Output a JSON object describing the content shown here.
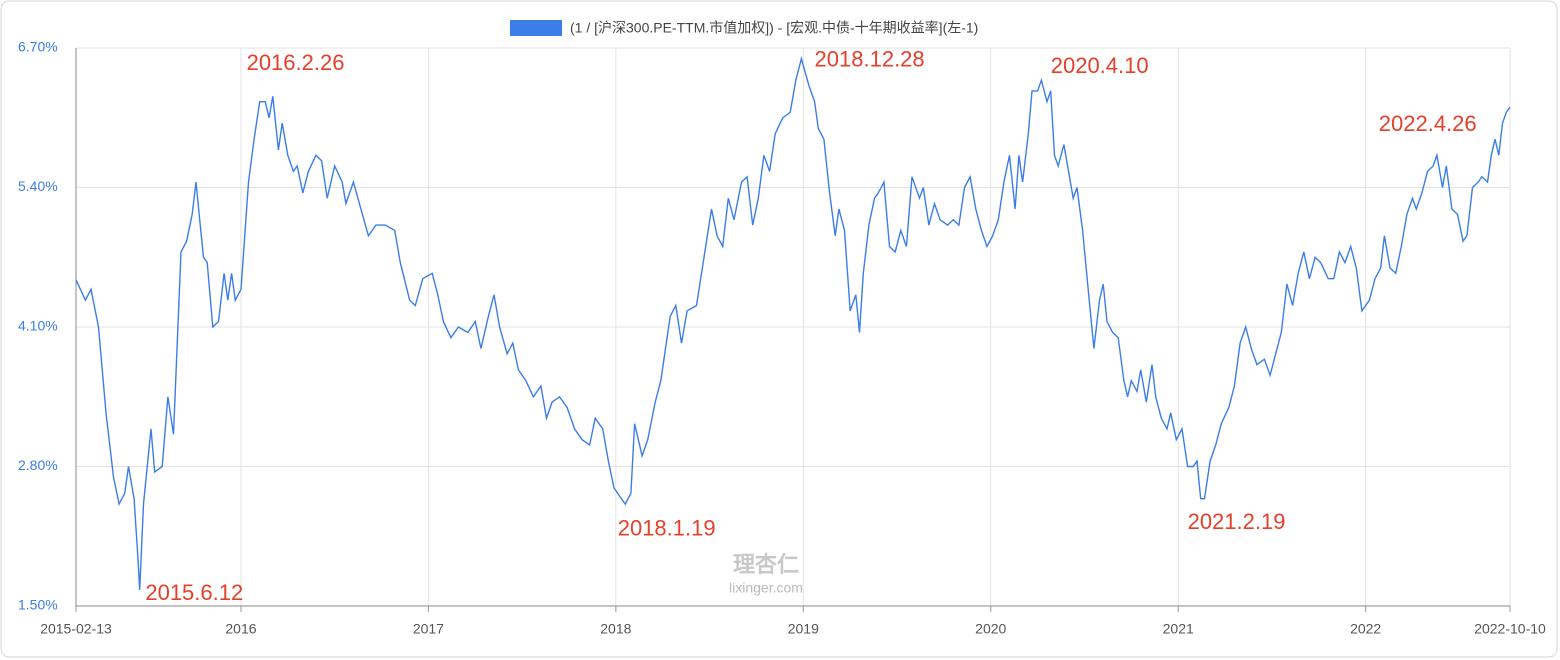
{
  "chart_data": {
    "type": "line",
    "legend_label": "(1 / [沪深300.PE-TTM.市值加权]) - [宏观.中债-十年期收益率](左-1)",
    "x": [
      2015.12,
      2015.17,
      2015.2,
      2015.24,
      2015.28,
      2015.32,
      2015.35,
      2015.38,
      2015.4,
      2015.43,
      2015.45,
      2015.46,
      2015.48,
      2015.52,
      2015.54,
      2015.58,
      2015.61,
      2015.64,
      2015.68,
      2015.71,
      2015.74,
      2015.76,
      2015.78,
      2015.8,
      2015.82,
      2015.85,
      2015.88,
      2015.91,
      2015.93,
      2015.95,
      2015.97,
      2016.0,
      2016.04,
      2016.07,
      2016.1,
      2016.13,
      2016.15,
      2016.17,
      2016.2,
      2016.22,
      2016.25,
      2016.28,
      2016.3,
      2016.33,
      2016.36,
      2016.4,
      2016.43,
      2016.46,
      2016.5,
      2016.54,
      2016.56,
      2016.6,
      2016.64,
      2016.68,
      2016.72,
      2016.77,
      2016.82,
      2016.85,
      2016.9,
      2016.93,
      2016.97,
      2017.02,
      2017.05,
      2017.08,
      2017.12,
      2017.16,
      2017.21,
      2017.25,
      2017.28,
      2017.32,
      2017.35,
      2017.38,
      2017.42,
      2017.45,
      2017.48,
      2017.52,
      2017.56,
      2017.6,
      2017.63,
      2017.66,
      2017.7,
      2017.74,
      2017.78,
      2017.82,
      2017.86,
      2017.89,
      2017.93,
      2017.96,
      2017.99,
      2018.05,
      2018.08,
      2018.1,
      2018.14,
      2018.17,
      2018.21,
      2018.24,
      2018.29,
      2018.32,
      2018.35,
      2018.38,
      2018.43,
      2018.47,
      2018.51,
      2018.54,
      2018.57,
      2018.6,
      2018.63,
      2018.67,
      2018.7,
      2018.73,
      2018.76,
      2018.79,
      2018.82,
      2018.85,
      2018.89,
      2018.93,
      2018.96,
      2018.99,
      2019.03,
      2019.06,
      2019.08,
      2019.11,
      2019.14,
      2019.17,
      2019.19,
      2019.22,
      2019.25,
      2019.28,
      2019.3,
      2019.32,
      2019.35,
      2019.38,
      2019.4,
      2019.43,
      2019.46,
      2019.49,
      2019.52,
      2019.55,
      2019.58,
      2019.62,
      2019.64,
      2019.67,
      2019.7,
      2019.73,
      2019.77,
      2019.8,
      2019.83,
      2019.86,
      2019.89,
      2019.92,
      2019.95,
      2019.98,
      2020.01,
      2020.04,
      2020.07,
      2020.1,
      2020.13,
      2020.15,
      2020.17,
      2020.2,
      2020.22,
      2020.25,
      2020.27,
      2020.3,
      2020.32,
      2020.34,
      2020.36,
      2020.39,
      2020.41,
      2020.44,
      2020.46,
      2020.49,
      2020.52,
      2020.55,
      2020.58,
      2020.6,
      2020.62,
      2020.65,
      2020.68,
      2020.71,
      2020.73,
      2020.75,
      2020.78,
      2020.8,
      2020.83,
      2020.86,
      2020.88,
      2020.91,
      2020.94,
      2020.96,
      2020.99,
      2021.02,
      2021.05,
      2021.08,
      2021.1,
      2021.12,
      2021.14,
      2021.17,
      2021.2,
      2021.23,
      2021.27,
      2021.3,
      2021.33,
      2021.36,
      2021.39,
      2021.42,
      2021.46,
      2021.49,
      2021.52,
      2021.55,
      2021.58,
      2021.61,
      2021.64,
      2021.67,
      2021.7,
      2021.73,
      2021.76,
      2021.8,
      2021.83,
      2021.86,
      2021.89,
      2021.92,
      2021.95,
      2021.98,
      2022.02,
      2022.05,
      2022.08,
      2022.1,
      2022.13,
      2022.16,
      2022.19,
      2022.22,
      2022.25,
      2022.27,
      2022.3,
      2022.33,
      2022.36,
      2022.38,
      2022.41,
      2022.43,
      2022.46,
      2022.49,
      2022.52,
      2022.54,
      2022.57,
      2022.6,
      2022.62,
      2022.65,
      2022.67,
      2022.69,
      2022.71,
      2022.73,
      2022.75,
      2022.77
    ],
    "series": [
      {
        "name": "(1 / [沪深300.PE-TTM.市值加权]) - [宏观.中债-十年期收益率](左-1)",
        "color": "#3b7de9",
        "values": [
          4.54,
          4.35,
          4.45,
          4.1,
          3.3,
          2.7,
          2.45,
          2.55,
          2.8,
          2.5,
          1.95,
          1.65,
          2.45,
          3.15,
          2.75,
          2.8,
          3.45,
          3.1,
          4.8,
          4.9,
          5.15,
          5.45,
          5.1,
          4.75,
          4.7,
          4.1,
          4.15,
          4.6,
          4.35,
          4.6,
          4.35,
          4.45,
          5.45,
          5.85,
          6.2,
          6.2,
          6.05,
          6.25,
          5.75,
          6.0,
          5.7,
          5.55,
          5.6,
          5.35,
          5.55,
          5.7,
          5.65,
          5.3,
          5.6,
          5.45,
          5.25,
          5.45,
          5.2,
          4.95,
          5.05,
          5.05,
          5.0,
          4.7,
          4.35,
          4.3,
          4.55,
          4.6,
          4.4,
          4.15,
          4.0,
          4.1,
          4.05,
          4.15,
          3.9,
          4.2,
          4.4,
          4.1,
          3.85,
          3.95,
          3.7,
          3.6,
          3.45,
          3.55,
          3.25,
          3.4,
          3.45,
          3.35,
          3.15,
          3.05,
          3.0,
          3.25,
          3.15,
          2.85,
          2.6,
          2.45,
          2.55,
          3.2,
          2.9,
          3.05,
          3.4,
          3.6,
          4.2,
          4.3,
          3.95,
          4.25,
          4.3,
          4.75,
          5.2,
          4.95,
          4.85,
          5.3,
          5.1,
          5.45,
          5.5,
          5.05,
          5.3,
          5.7,
          5.55,
          5.9,
          6.05,
          6.1,
          6.4,
          6.6,
          6.35,
          6.2,
          5.95,
          5.85,
          5.35,
          4.95,
          5.2,
          5.0,
          4.25,
          4.4,
          4.05,
          4.6,
          5.05,
          5.3,
          5.35,
          5.45,
          4.85,
          4.8,
          5.0,
          4.85,
          5.5,
          5.3,
          5.4,
          5.05,
          5.25,
          5.1,
          5.05,
          5.1,
          5.05,
          5.4,
          5.5,
          5.2,
          5.0,
          4.85,
          4.95,
          5.1,
          5.45,
          5.7,
          5.2,
          5.7,
          5.45,
          5.9,
          6.3,
          6.3,
          6.4,
          6.2,
          6.3,
          5.7,
          5.6,
          5.8,
          5.6,
          5.3,
          5.4,
          5.0,
          4.45,
          3.9,
          4.35,
          4.5,
          4.15,
          4.05,
          4.0,
          3.6,
          3.45,
          3.6,
          3.5,
          3.7,
          3.4,
          3.75,
          3.45,
          3.25,
          3.15,
          3.3,
          3.05,
          3.15,
          2.8,
          2.8,
          2.85,
          2.5,
          2.5,
          2.85,
          3.0,
          3.2,
          3.35,
          3.55,
          3.95,
          4.1,
          3.9,
          3.75,
          3.8,
          3.65,
          3.85,
          4.05,
          4.5,
          4.3,
          4.6,
          4.8,
          4.55,
          4.75,
          4.7,
          4.55,
          4.55,
          4.8,
          4.7,
          4.85,
          4.65,
          4.25,
          4.35,
          4.55,
          4.65,
          4.95,
          4.65,
          4.6,
          4.85,
          5.15,
          5.3,
          5.2,
          5.35,
          5.55,
          5.6,
          5.7,
          5.4,
          5.6,
          5.2,
          5.15,
          4.9,
          4.95,
          5.4,
          5.45,
          5.5,
          5.45,
          5.7,
          5.85,
          5.7,
          6.0,
          6.1,
          6.15
        ]
      }
    ],
    "xlim": [
      2015.12,
      2022.77
    ],
    "xticks": [
      {
        "value": 2015.12,
        "label": "2015-02-13"
      },
      2016,
      2017,
      2018,
      2019,
      2020,
      2021,
      2022,
      {
        "value": 2022.77,
        "label": "2022-10-10"
      }
    ],
    "ylim": [
      1.5,
      6.7
    ],
    "yticks": [
      {
        "value": 1.5,
        "label": "1.50%"
      },
      {
        "value": 2.8,
        "label": "2.80%"
      },
      {
        "value": 4.1,
        "label": "4.10%"
      },
      {
        "value": 5.4,
        "label": "5.40%"
      },
      {
        "value": 6.7,
        "label": "6.70%"
      }
    ],
    "grid": true,
    "annotations": [
      {
        "text": "2015.6.12",
        "x": 2015.49,
        "y": 1.61
      },
      {
        "text": "2016.2.26",
        "x": 2016.03,
        "y": 6.55
      },
      {
        "text": "2018.1.19",
        "x": 2018.01,
        "y": 2.21
      },
      {
        "text": "2018.12.28",
        "x": 2019.06,
        "y": 6.58
      },
      {
        "text": "2020.4.10",
        "x": 2020.32,
        "y": 6.52
      },
      {
        "text": "2021.2.19",
        "x": 2021.05,
        "y": 2.27
      },
      {
        "text": "2022.4.26",
        "x": 2022.07,
        "y": 5.98
      }
    ],
    "annotation_color": "#e5402b",
    "watermark": {
      "logo": "理杏仁",
      "site": "lixinger.com"
    }
  }
}
